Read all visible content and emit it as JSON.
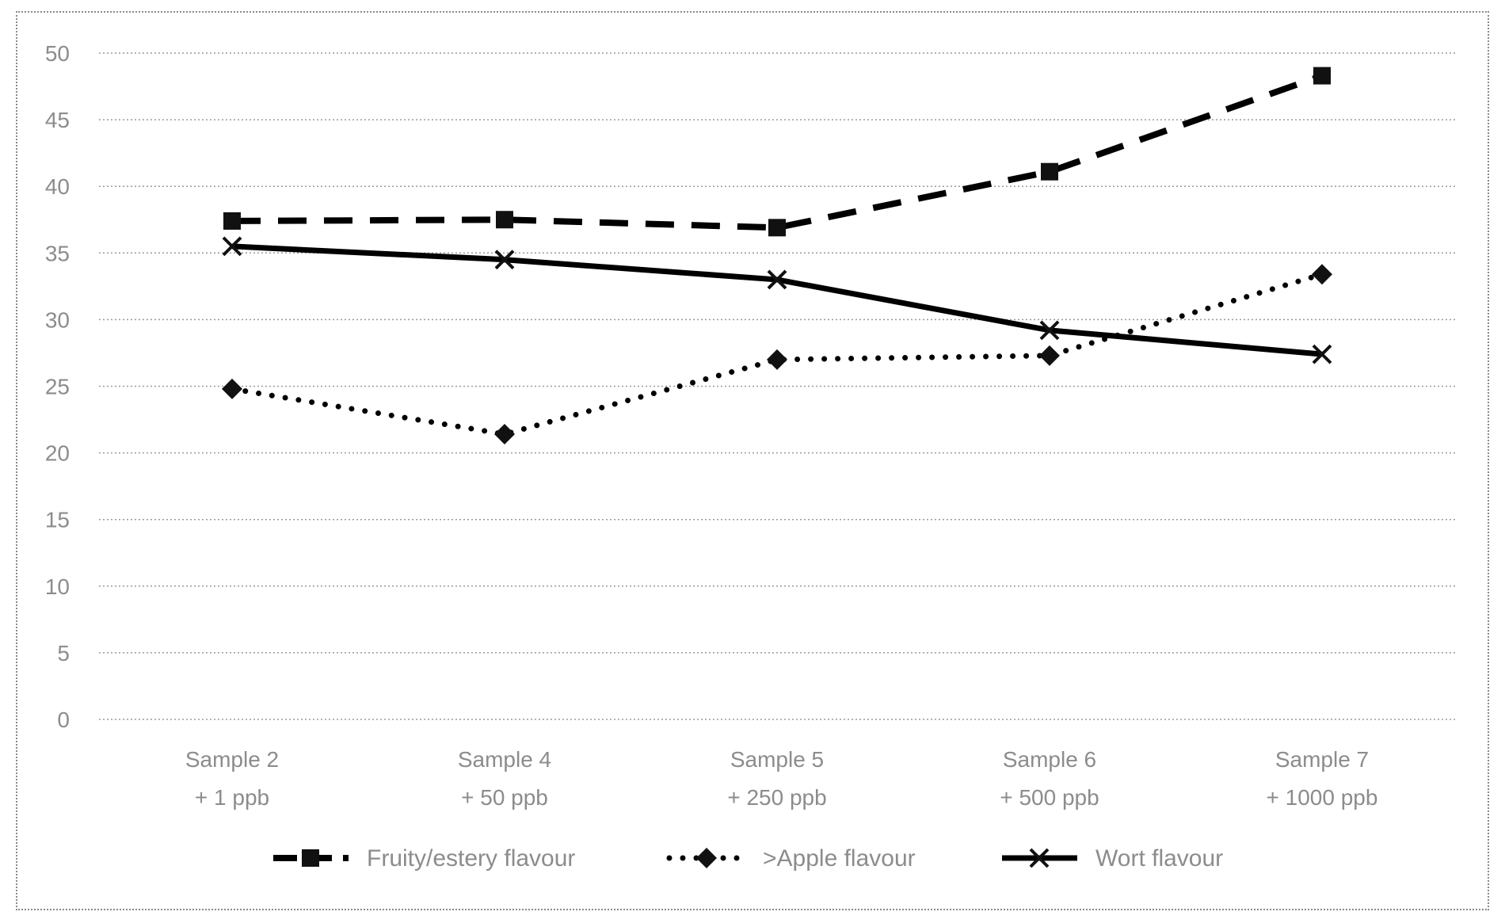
{
  "chart_data": {
    "type": "line",
    "categories": [
      [
        "Sample 2",
        "+ 1 ppb"
      ],
      [
        "Sample 4",
        "+ 50 ppb"
      ],
      [
        "Sample 5",
        "+ 250 ppb"
      ],
      [
        "Sample 6",
        "+ 500 ppb"
      ],
      [
        "Sample 7",
        "+ 1000 ppb"
      ]
    ],
    "ylim": [
      0,
      50
    ],
    "yticks": [
      "0",
      "5",
      "10",
      "15",
      "20",
      "25",
      "30",
      "35",
      "40",
      "45",
      "50"
    ],
    "grid": true,
    "legend_position": "bottom",
    "series": [
      {
        "name": "Fruity/estery flavour",
        "values": [
          37.4,
          37.5,
          36.9,
          41.1,
          48.3
        ],
        "line_style": "dashed",
        "marker": "square",
        "color": "#000000"
      },
      {
        "name": ">Apple flavour",
        "values": [
          24.8,
          21.4,
          27.0,
          27.3,
          33.4
        ],
        "line_style": "dotted",
        "marker": "diamond",
        "color": "#000000"
      },
      {
        "name": "Wort flavour",
        "values": [
          35.5,
          34.5,
          33.0,
          29.2,
          27.4
        ],
        "line_style": "solid",
        "marker": "x",
        "color": "#000000"
      }
    ]
  }
}
